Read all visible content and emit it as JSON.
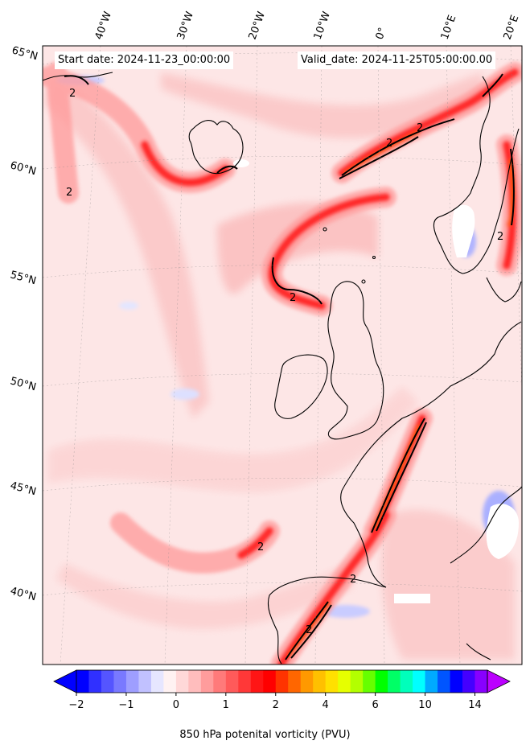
{
  "header": {
    "start_date": "Start date: 2024-11-23_00:00:00",
    "valid_date": "Valid_date: 2024-11-25T05:00:00.00"
  },
  "map": {
    "lon_labels": [
      "40°W",
      "30°W",
      "20°W",
      "10°W",
      "0°",
      "10°E",
      "20°E"
    ],
    "lat_labels": [
      "65°N",
      "60°N",
      "55°N",
      "50°N",
      "45°N",
      "40°N"
    ],
    "contour_label": "2",
    "background_color": "#fde6e6",
    "coast_color": "#000000"
  },
  "colorbar": {
    "title": "850 hPa potenital vorticity (PVU)",
    "tick_labels": [
      "−2",
      "−1",
      "0",
      "1",
      "2",
      "4",
      "6",
      "10",
      "14"
    ],
    "colors": [
      "#0000ff",
      "#3030ff",
      "#5555ff",
      "#7979ff",
      "#9e9eff",
      "#c1c1ff",
      "#e6e6ff",
      "#fff2f2",
      "#ffd8d8",
      "#ffbdbd",
      "#ff9c9c",
      "#ff7a7a",
      "#ff5a5a",
      "#ff3838",
      "#ff1515",
      "#ff0000",
      "#ff3300",
      "#ff6600",
      "#ff9900",
      "#ffc000",
      "#ffe000",
      "#e6ff00",
      "#b3ff00",
      "#66ff00",
      "#00ff00",
      "#00ff66",
      "#00ffbb",
      "#00ffff",
      "#00aaff",
      "#0055ff",
      "#0000ff",
      "#4400ff",
      "#8800ff"
    ],
    "over_color": "#bb00ff",
    "under_color": "#0000ff"
  }
}
